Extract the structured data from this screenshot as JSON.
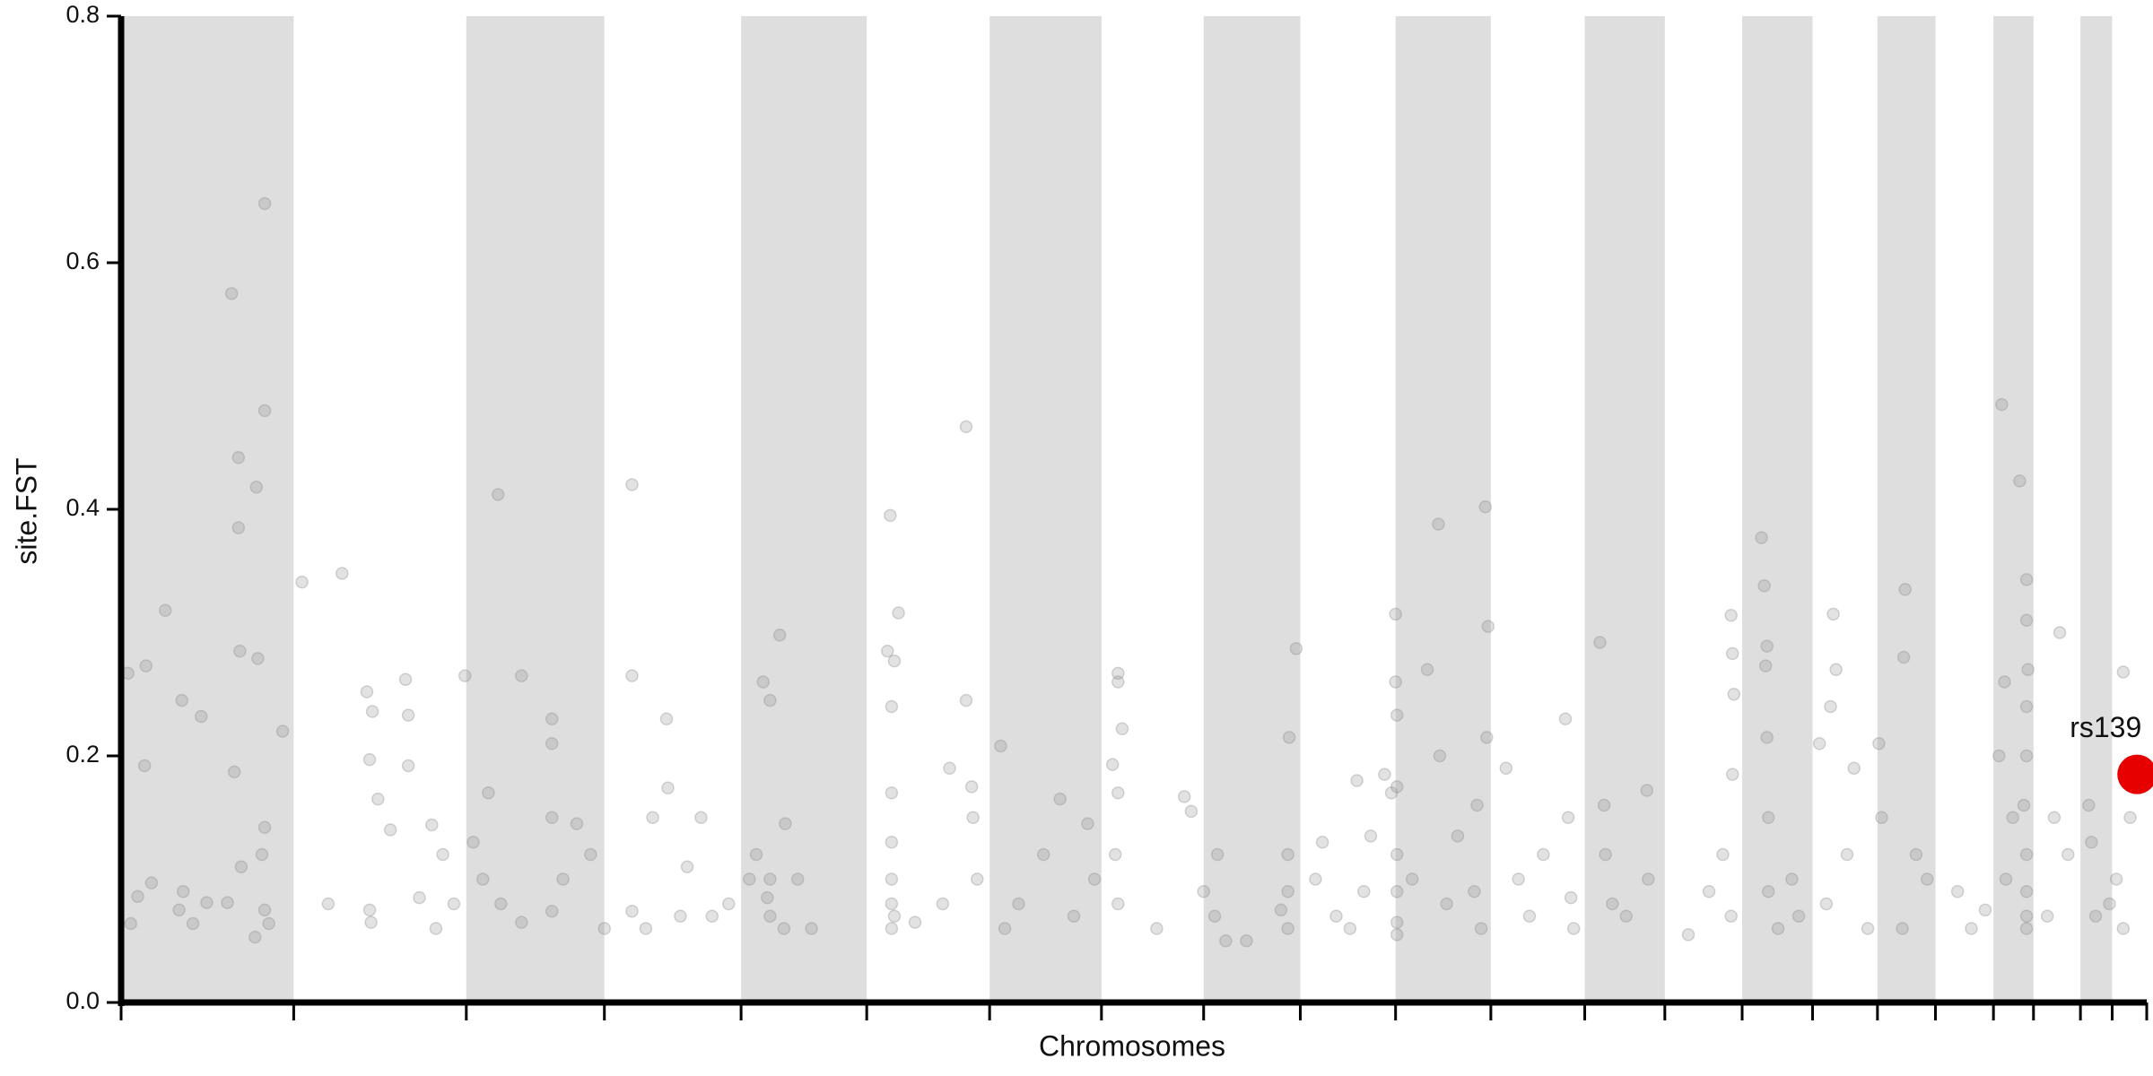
{
  "chart_data": {
    "type": "scatter",
    "xlabel": "Chromosomes",
    "ylabel": "site.FST",
    "xlim": [
      0,
      1467
    ],
    "xticks": [
      0,
      125,
      250,
      350,
      449,
      540,
      629,
      710,
      784,
      854,
      923,
      992,
      1060,
      1118,
      1174,
      1225,
      1272,
      1314,
      1356,
      1385,
      1419,
      1442,
      1467
    ],
    "ylim": [
      0,
      0.8
    ],
    "yticks": [
      {
        "value": 0,
        "label": "0.0"
      },
      0.2,
      0.4,
      0.6,
      0.8
    ],
    "band_color": "#dedede",
    "series": [
      {
        "color": "#8a8a8a",
        "x": [
          5,
          12,
          17,
          18,
          32,
          44,
          58,
          80,
          85,
          85,
          86,
          98,
          99,
          104,
          104,
          104,
          102,
          82,
          77,
          107,
          117,
          42,
          22,
          7,
          62,
          52,
          97,
          104,
          87,
          45,
          131,
          160,
          178,
          180,
          182,
          186,
          206,
          208,
          208,
          225,
          233,
          180,
          181,
          216,
          241,
          150,
          195,
          228,
          249,
          273,
          266,
          255,
          262,
          290,
          312,
          312,
          312,
          312,
          330,
          340,
          350,
          290,
          275,
          320,
          370,
          370,
          395,
          396,
          385,
          370,
          410,
          420,
          428,
          440,
          380,
          405,
          465,
          470,
          477,
          481,
          470,
          468,
          470,
          480,
          490,
          455,
          500,
          460,
          557,
          555,
          560,
          563,
          558,
          558,
          558,
          558,
          558,
          558,
          560,
          575,
          600,
          612,
          616,
          612,
          617,
          620,
          595,
          637,
          650,
          640,
          668,
          680,
          690,
          700,
          705,
          718,
          722,
          722,
          725,
          722,
          720,
          722,
          750,
          770,
          775,
          784,
          794,
          792,
          800,
          815,
          846,
          851,
          845,
          845,
          845,
          840,
          865,
          880,
          895,
          905,
          915,
          920,
          900,
          890,
          870,
          923,
          923,
          924,
          924,
          924,
          924,
          924,
          924,
          946,
          954,
          968,
          982,
          988,
          990,
          989,
          980,
          985,
          955,
          960,
          935,
          1003,
          1012,
          1020,
          1046,
          1048,
          1050,
          1052,
          1030,
          1071,
          1074,
          1075,
          1080,
          1105,
          1106,
          1090,
          1135,
          1150,
          1166,
          1167,
          1168,
          1167,
          1166,
          1160,
          1188,
          1190,
          1192,
          1191,
          1192,
          1193,
          1193,
          1200,
          1210,
          1215,
          1230,
          1238,
          1240,
          1242,
          1235,
          1250,
          1255,
          1265,
          1273,
          1275,
          1292,
          1291,
          1300,
          1290,
          1308,
          1330,
          1340,
          1350,
          1362,
          1375,
          1380,
          1380,
          1381,
          1380,
          1380,
          1378,
          1380,
          1380,
          1380,
          1380,
          1360,
          1364,
          1365,
          1370,
          1404,
          1400,
          1410,
          1395,
          1425,
          1427,
          1430,
          1440,
          1450,
          1455,
          1445,
          1450
        ],
        "values": [
          0.267,
          0.086,
          0.192,
          0.273,
          0.318,
          0.245,
          0.232,
          0.575,
          0.385,
          0.442,
          0.285,
          0.418,
          0.279,
          0.48,
          0.648,
          0.142,
          0.12,
          0.187,
          0.081,
          0.064,
          0.22,
          0.075,
          0.097,
          0.064,
          0.081,
          0.064,
          0.053,
          0.075,
          0.11,
          0.09,
          0.341,
          0.348,
          0.252,
          0.197,
          0.236,
          0.165,
          0.262,
          0.233,
          0.192,
          0.144,
          0.12,
          0.075,
          0.065,
          0.085,
          0.08,
          0.08,
          0.14,
          0.06,
          0.265,
          0.412,
          0.17,
          0.13,
          0.1,
          0.265,
          0.23,
          0.21,
          0.15,
          0.074,
          0.145,
          0.12,
          0.06,
          0.065,
          0.08,
          0.1,
          0.42,
          0.265,
          0.23,
          0.174,
          0.15,
          0.074,
          0.11,
          0.15,
          0.07,
          0.08,
          0.06,
          0.07,
          0.26,
          0.245,
          0.298,
          0.145,
          0.1,
          0.085,
          0.07,
          0.06,
          0.1,
          0.1,
          0.06,
          0.12,
          0.395,
          0.285,
          0.277,
          0.316,
          0.24,
          0.17,
          0.13,
          0.1,
          0.08,
          0.06,
          0.07,
          0.065,
          0.19,
          0.245,
          0.175,
          0.467,
          0.15,
          0.1,
          0.08,
          0.208,
          0.08,
          0.06,
          0.12,
          0.165,
          0.07,
          0.145,
          0.1,
          0.193,
          0.267,
          0.26,
          0.222,
          0.17,
          0.12,
          0.08,
          0.06,
          0.167,
          0.155,
          0.09,
          0.12,
          0.07,
          0.05,
          0.05,
          0.215,
          0.287,
          0.12,
          0.09,
          0.06,
          0.075,
          0.1,
          0.07,
          0.18,
          0.135,
          0.185,
          0.17,
          0.09,
          0.06,
          0.13,
          0.315,
          0.26,
          0.233,
          0.175,
          0.12,
          0.09,
          0.065,
          0.055,
          0.27,
          0.388,
          0.135,
          0.16,
          0.402,
          0.305,
          0.215,
          0.09,
          0.06,
          0.2,
          0.08,
          0.1,
          0.19,
          0.1,
          0.07,
          0.23,
          0.15,
          0.085,
          0.06,
          0.12,
          0.292,
          0.16,
          0.12,
          0.08,
          0.172,
          0.1,
          0.07,
          0.055,
          0.09,
          0.314,
          0.283,
          0.25,
          0.185,
          0.07,
          0.12,
          0.377,
          0.338,
          0.289,
          0.273,
          0.215,
          0.15,
          0.09,
          0.06,
          0.1,
          0.07,
          0.21,
          0.24,
          0.315,
          0.27,
          0.08,
          0.12,
          0.19,
          0.06,
          0.21,
          0.15,
          0.335,
          0.28,
          0.12,
          0.06,
          0.1,
          0.09,
          0.06,
          0.075,
          0.485,
          0.423,
          0.343,
          0.31,
          0.27,
          0.24,
          0.2,
          0.16,
          0.12,
          0.09,
          0.07,
          0.06,
          0.2,
          0.26,
          0.1,
          0.15,
          0.3,
          0.15,
          0.12,
          0.07,
          0.16,
          0.13,
          0.07,
          0.08,
          0.268,
          0.15,
          0.1,
          0.06
        ]
      }
    ],
    "highlight": {
      "x": 1460,
      "value": 0.185,
      "label": "rs139",
      "color": "#e60000"
    }
  }
}
